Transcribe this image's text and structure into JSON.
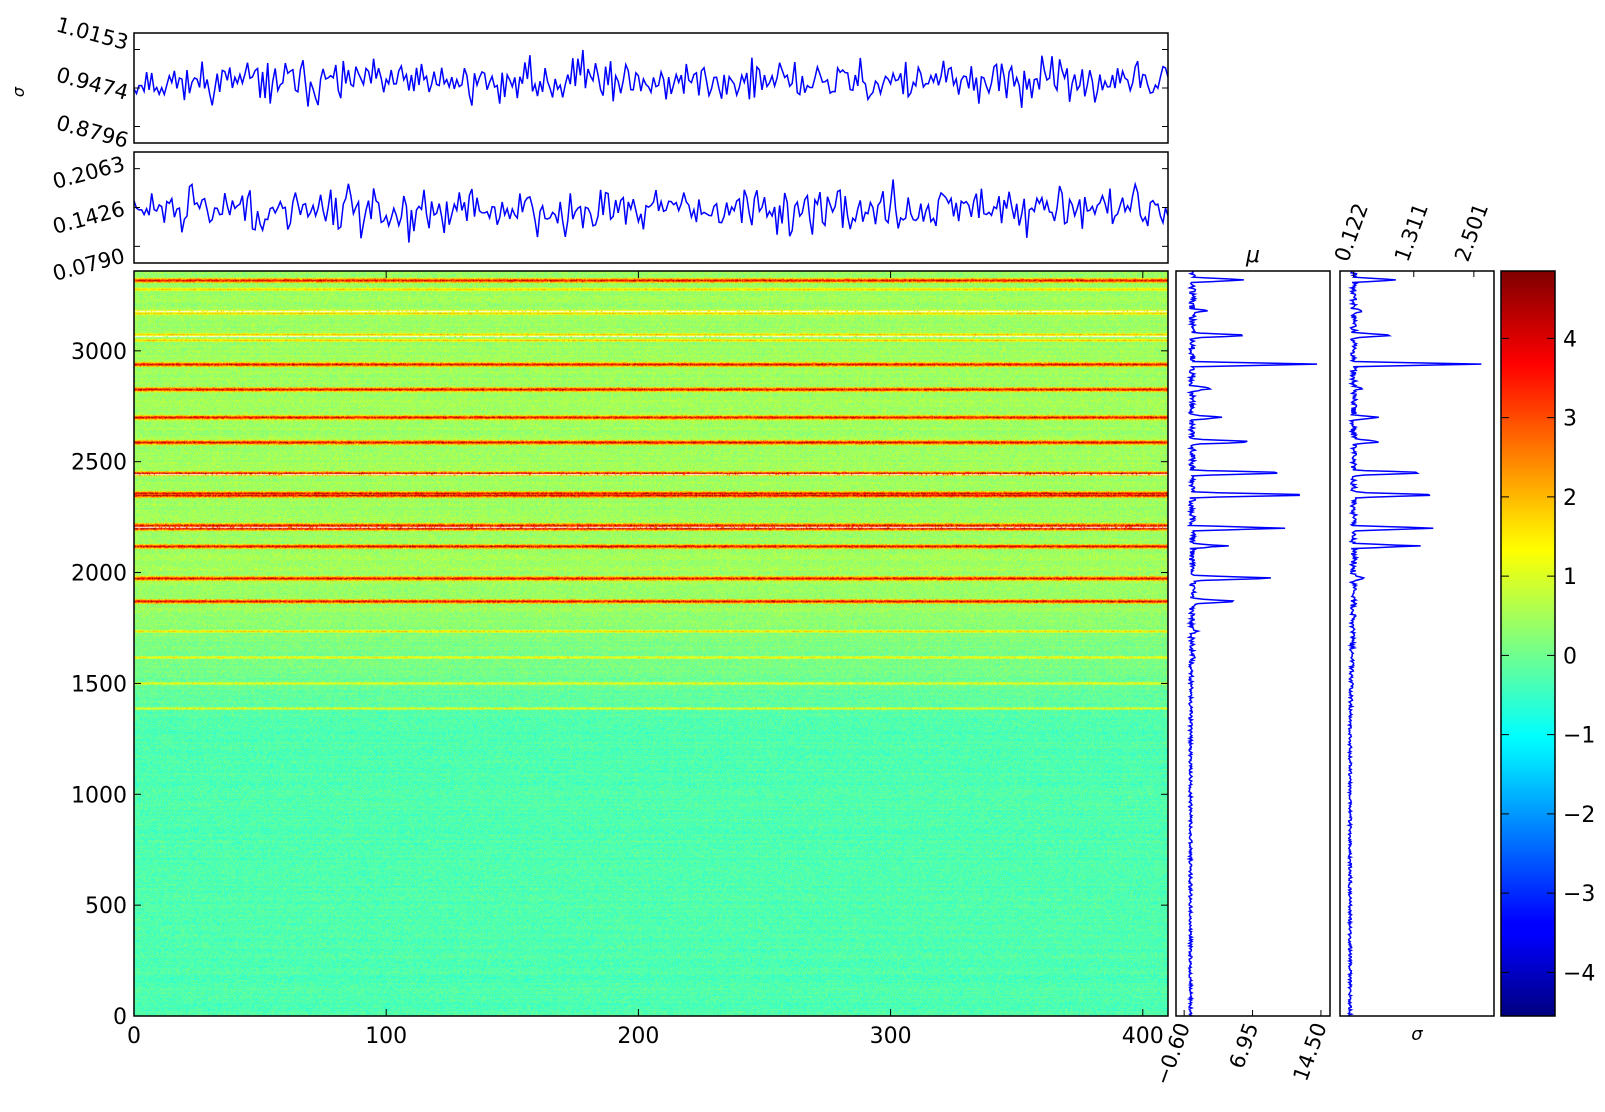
{
  "chart_data": [
    {
      "type": "line",
      "panel": "top-sigma-strip",
      "ylabel": "σ",
      "y_ticks": [
        "1.0153",
        "0.9474",
        "0.8796"
      ],
      "ylim": [
        0.8796,
        1.0153
      ],
      "xlim": [
        0,
        410
      ],
      "series_color": "#0000ff",
      "seed": 11,
      "mean": 0.955,
      "spread": 0.022
    },
    {
      "type": "line",
      "panel": "second-strip",
      "y_ticks": [
        "0.2063",
        "0.1426",
        "0.0790"
      ],
      "ylim": [
        0.079,
        0.2063
      ],
      "xlim": [
        0,
        410
      ],
      "series_color": "#0000ff",
      "seed": 29,
      "mean": 0.14,
      "spread": 0.022
    },
    {
      "type": "heatmap",
      "panel": "main-heatmap",
      "colormap": "jet",
      "x_ticks": [
        "0",
        "100",
        "200",
        "300",
        "400"
      ],
      "x_tick_values": [
        0,
        100,
        200,
        300,
        400
      ],
      "y_ticks": [
        "0",
        "500",
        "1000",
        "1500",
        "2000",
        "2500",
        "3000"
      ],
      "y_tick_values": [
        0,
        500,
        1000,
        1500,
        2000,
        2500,
        3000
      ],
      "xlim": [
        0,
        410
      ],
      "ylim": [
        0,
        3360
      ],
      "base_value_low_rows": -0.3,
      "base_value_high_rows": 0.45,
      "bright_rows": [
        1870,
        1975,
        2120,
        2200,
        2215,
        2350,
        2360,
        2450,
        2590,
        2700,
        2830,
        2940,
        3320
      ],
      "dim_rows": [
        1735,
        1620,
        1500,
        1390,
        3050,
        3075,
        3170,
        3180,
        3280
      ],
      "white_rows": [
        2445,
        2205,
        3065,
        3180
      ]
    },
    {
      "type": "line",
      "panel": "mu-profile",
      "title": "μ",
      "x_ticks": [
        "−0.60",
        "6.95",
        "14.50"
      ],
      "xlim": [
        -1.5,
        15.5
      ],
      "series_color": "#0000ff",
      "peaks": [
        {
          "y": 1870,
          "v": 5.5
        },
        {
          "y": 1975,
          "v": 10.0
        },
        {
          "y": 2120,
          "v": 4.0
        },
        {
          "y": 2200,
          "v": 10.5
        },
        {
          "y": 2350,
          "v": 14.6
        },
        {
          "y": 2450,
          "v": 11.5
        },
        {
          "y": 2590,
          "v": 7.5
        },
        {
          "y": 2700,
          "v": 3.5
        },
        {
          "y": 2830,
          "v": 2.5
        },
        {
          "y": 2940,
          "v": 14.0
        },
        {
          "y": 3070,
          "v": 7.0
        },
        {
          "y": 3180,
          "v": 2.0
        },
        {
          "y": 3320,
          "v": 6.0
        },
        {
          "y": 1735,
          "v": 1.0
        },
        {
          "y": 1620,
          "v": 0.5
        }
      ]
    },
    {
      "type": "line",
      "panel": "sigma-profile",
      "xlabel": "σ",
      "x_ticks": [
        "0.122",
        "1.311",
        "2.501"
      ],
      "xlim": [
        -0.15,
        2.9
      ],
      "series_color": "#0000ff",
      "peaks": [
        {
          "y": 1975,
          "v": 0.4
        },
        {
          "y": 2120,
          "v": 1.4
        },
        {
          "y": 2200,
          "v": 1.7
        },
        {
          "y": 2350,
          "v": 1.9
        },
        {
          "y": 2450,
          "v": 1.6
        },
        {
          "y": 2590,
          "v": 0.7
        },
        {
          "y": 2700,
          "v": 0.6
        },
        {
          "y": 2830,
          "v": 0.3
        },
        {
          "y": 2940,
          "v": 2.6
        },
        {
          "y": 3070,
          "v": 0.9
        },
        {
          "y": 3180,
          "v": 0.3
        },
        {
          "y": 3320,
          "v": 1.0
        }
      ]
    },
    {
      "type": "colorbar",
      "panel": "colorbar",
      "colormap": "jet",
      "tick_labels": [
        "−4",
        "−3",
        "−2",
        "−1",
        "0",
        "1",
        "2",
        "3",
        "4"
      ],
      "tick_values": [
        -4,
        -3,
        -2,
        -1,
        0,
        1,
        2,
        3,
        4
      ],
      "vmin": -4.55,
      "vmax": 4.85
    }
  ]
}
